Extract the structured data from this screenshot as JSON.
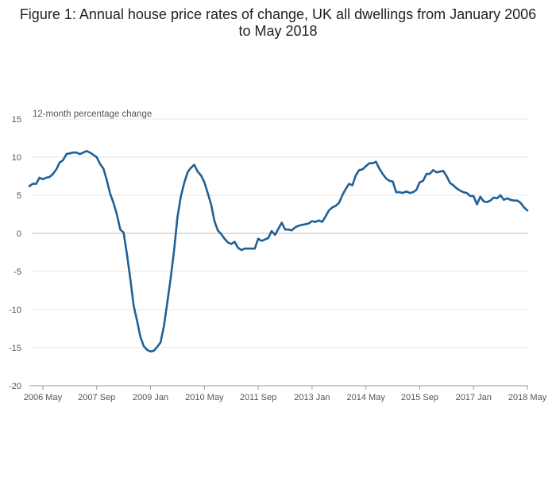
{
  "title": "Figure 1: Annual house price rates of change, UK all dwellings from January 2006 to May 2018",
  "chart_data": {
    "type": "line",
    "title": "Figure 1: Annual house price rates of change, UK all dwellings from January 2006 to May 2018",
    "ylabel": "12-month percentage change",
    "ylim": [
      -20,
      15
    ],
    "yticks": [
      15,
      10,
      5,
      0,
      -5,
      -10,
      -15,
      -20
    ],
    "xlim": [
      "2006-01",
      "2018-05"
    ],
    "xtick_labels": [
      "2006 May",
      "2007 Sep",
      "2009 Jan",
      "2010 May",
      "2011 Sep",
      "2013 Jan",
      "2014 May",
      "2015 Sep",
      "2017 Jan",
      "2018 May"
    ],
    "xtick_dates": [
      "2006-05",
      "2007-09",
      "2009-01",
      "2010-05",
      "2011-09",
      "2013-01",
      "2014-05",
      "2015-09",
      "2017-01",
      "2018-05"
    ],
    "grid": true,
    "line_color": "#206095",
    "series": [
      {
        "x": [
          "2006-01",
          "2006-02",
          "2006-03",
          "2006-04",
          "2006-05",
          "2006-06",
          "2006-07",
          "2006-08",
          "2006-09",
          "2006-10",
          "2006-11",
          "2006-12",
          "2007-01",
          "2007-02",
          "2007-03",
          "2007-04",
          "2007-05",
          "2007-06",
          "2007-07",
          "2007-08",
          "2007-09",
          "2007-10",
          "2007-11",
          "2007-12",
          "2008-01",
          "2008-02",
          "2008-03",
          "2008-04",
          "2008-05",
          "2008-06",
          "2008-07",
          "2008-08",
          "2008-09",
          "2008-10",
          "2008-11",
          "2008-12",
          "2009-01",
          "2009-02",
          "2009-03",
          "2009-04",
          "2009-05",
          "2009-06",
          "2009-07",
          "2009-08",
          "2009-09",
          "2009-10",
          "2009-11",
          "2009-12",
          "2010-01",
          "2010-02",
          "2010-03",
          "2010-04",
          "2010-05",
          "2010-06",
          "2010-07",
          "2010-08",
          "2010-09",
          "2010-10",
          "2010-11",
          "2010-12",
          "2011-01",
          "2011-02",
          "2011-03",
          "2011-04",
          "2011-05",
          "2011-06",
          "2011-07",
          "2011-08",
          "2011-09",
          "2011-10",
          "2011-11",
          "2011-12",
          "2012-01",
          "2012-02",
          "2012-03",
          "2012-04",
          "2012-05",
          "2012-06",
          "2012-07",
          "2012-08",
          "2012-09",
          "2012-10",
          "2012-11",
          "2012-12",
          "2013-01",
          "2013-02",
          "2013-03",
          "2013-04",
          "2013-05",
          "2013-06",
          "2013-07",
          "2013-08",
          "2013-09",
          "2013-10",
          "2013-11",
          "2013-12",
          "2014-01",
          "2014-02",
          "2014-03",
          "2014-04",
          "2014-05",
          "2014-06",
          "2014-07",
          "2014-08",
          "2014-09",
          "2014-10",
          "2014-11",
          "2014-12",
          "2015-01",
          "2015-02",
          "2015-03",
          "2015-04",
          "2015-05",
          "2015-06",
          "2015-07",
          "2015-08",
          "2015-09",
          "2015-10",
          "2015-11",
          "2015-12",
          "2016-01",
          "2016-02",
          "2016-03",
          "2016-04",
          "2016-05",
          "2016-06",
          "2016-07",
          "2016-08",
          "2016-09",
          "2016-10",
          "2016-11",
          "2016-12",
          "2017-01",
          "2017-02",
          "2017-03",
          "2017-04",
          "2017-05",
          "2017-06",
          "2017-07",
          "2017-08",
          "2017-09",
          "2017-10",
          "2017-11",
          "2017-12",
          "2018-01",
          "2018-02",
          "2018-03",
          "2018-04",
          "2018-05"
        ],
        "values": [
          6.2,
          6.5,
          6.5,
          7.3,
          7.1,
          7.3,
          7.4,
          7.8,
          8.4,
          9.3,
          9.6,
          10.4,
          10.5,
          10.6,
          10.6,
          10.4,
          10.6,
          10.8,
          10.6,
          10.3,
          10.0,
          9.1,
          8.5,
          7.0,
          5.2,
          4.0,
          2.5,
          0.5,
          0.1,
          -2.8,
          -6.0,
          -9.5,
          -11.5,
          -13.6,
          -14.8,
          -15.3,
          -15.5,
          -15.4,
          -14.9,
          -14.3,
          -12.1,
          -9.0,
          -5.9,
          -2.2,
          2.1,
          4.8,
          6.6,
          8.0,
          8.6,
          9.0,
          8.1,
          7.6,
          6.7,
          5.3,
          3.8,
          1.6,
          0.4,
          -0.1,
          -0.7,
          -1.2,
          -1.4,
          -1.1,
          -1.9,
          -2.2,
          -2.0,
          -2.0,
          -2.0,
          -2.0,
          -0.7,
          -1.0,
          -0.8,
          -0.6,
          0.3,
          -0.2,
          0.6,
          1.4,
          0.5,
          0.5,
          0.4,
          0.8,
          1.0,
          1.1,
          1.2,
          1.3,
          1.6,
          1.5,
          1.7,
          1.5,
          2.2,
          3.0,
          3.4,
          3.6,
          4.0,
          5.0,
          5.8,
          6.5,
          6.3,
          7.6,
          8.3,
          8.4,
          8.8,
          9.2,
          9.2,
          9.4,
          8.5,
          7.8,
          7.2,
          6.9,
          6.8,
          5.4,
          5.4,
          5.3,
          5.5,
          5.3,
          5.4,
          5.7,
          6.7,
          6.9,
          7.8,
          7.8,
          8.3,
          8.0,
          8.1,
          8.2,
          7.5,
          6.6,
          6.3,
          5.9,
          5.6,
          5.4,
          5.3,
          4.9,
          4.9,
          3.8,
          4.8,
          4.2,
          4.1,
          4.3,
          4.7,
          4.6,
          5.0,
          4.4,
          4.6,
          4.4,
          4.3,
          4.3,
          4.0,
          3.4,
          3.0
        ]
      }
    ]
  }
}
